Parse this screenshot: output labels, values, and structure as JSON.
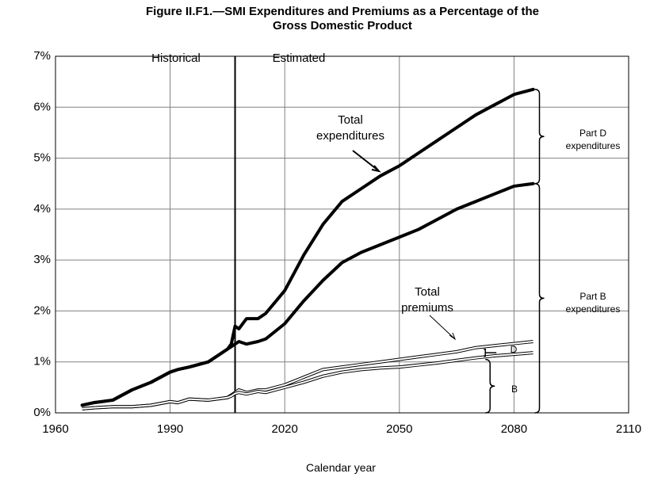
{
  "chart_data": {
    "type": "line",
    "title": "Figure II.F1.—SMI Expenditures and Premiums as a Percentage of the Gross Domestic Product",
    "xlabel": "Calendar year",
    "x": [
      1967,
      1970,
      1975,
      1980,
      1985,
      1990,
      1992,
      1995,
      2000,
      2005,
      2006,
      2007,
      2008,
      2010,
      2013,
      2015,
      2020,
      2025,
      2030,
      2035,
      2040,
      2045,
      2050,
      2055,
      2060,
      2065,
      2070,
      2075,
      2080,
      2085
    ],
    "series": [
      {
        "name": "Total expenditures",
        "color": "#000000",
        "line_width": 4,
        "values": [
          0.15,
          0.2,
          0.25,
          0.45,
          0.6,
          0.8,
          0.85,
          0.9,
          1.0,
          1.25,
          1.35,
          1.7,
          1.65,
          1.85,
          1.85,
          1.95,
          2.4,
          3.1,
          3.7,
          4.15,
          4.4,
          4.65,
          4.85,
          5.1,
          5.35,
          5.6,
          5.85,
          6.05,
          6.25,
          6.35
        ]
      },
      {
        "name": "Part B expenditures",
        "color": "#000000",
        "line_width": 4,
        "values": [
          0.15,
          0.2,
          0.25,
          0.45,
          0.6,
          0.8,
          0.85,
          0.9,
          1.0,
          1.25,
          1.3,
          1.35,
          1.4,
          1.35,
          1.4,
          1.45,
          1.75,
          2.2,
          2.6,
          2.95,
          3.15,
          3.3,
          3.45,
          3.6,
          3.8,
          4.0,
          4.15,
          4.3,
          4.45,
          4.5
        ]
      },
      {
        "name": "Total premiums",
        "color": "#000000",
        "line_width": 1,
        "values": [
          0.08,
          0.1,
          0.12,
          0.12,
          0.15,
          0.22,
          0.2,
          0.27,
          0.25,
          0.3,
          0.35,
          0.4,
          0.45,
          0.4,
          0.45,
          0.45,
          0.55,
          0.7,
          0.85,
          0.9,
          0.95,
          1.0,
          1.05,
          1.1,
          1.15,
          1.2,
          1.28,
          1.32,
          1.36,
          1.4
        ]
      },
      {
        "name": "B",
        "color": "#000000",
        "line_width": 1,
        "values": [
          0.08,
          0.1,
          0.12,
          0.12,
          0.15,
          0.22,
          0.2,
          0.27,
          0.25,
          0.3,
          0.33,
          0.38,
          0.4,
          0.37,
          0.42,
          0.4,
          0.5,
          0.6,
          0.72,
          0.8,
          0.85,
          0.88,
          0.9,
          0.94,
          0.98,
          1.03,
          1.08,
          1.12,
          1.15,
          1.18
        ]
      }
    ],
    "annotations": {
      "historical": "Historical",
      "estimated": "Estimated",
      "part_d": "Part D expenditures",
      "d": "D"
    },
    "divider_x": 2007,
    "xlim": [
      1960,
      2110
    ],
    "xticks": [
      1960,
      1990,
      2020,
      2050,
      2080,
      2110
    ],
    "ylim": [
      0,
      7
    ],
    "yticks": [
      {
        "value": 0,
        "label": "0%"
      },
      {
        "value": 1,
        "label": "1%"
      },
      {
        "value": 2,
        "label": "2%"
      },
      {
        "value": 3,
        "label": "3%"
      },
      {
        "value": 4,
        "label": "4%"
      },
      {
        "value": 5,
        "label": "5%"
      },
      {
        "value": 6,
        "label": "6%"
      },
      {
        "value": 7,
        "label": "7%"
      }
    ],
    "grid": true
  }
}
